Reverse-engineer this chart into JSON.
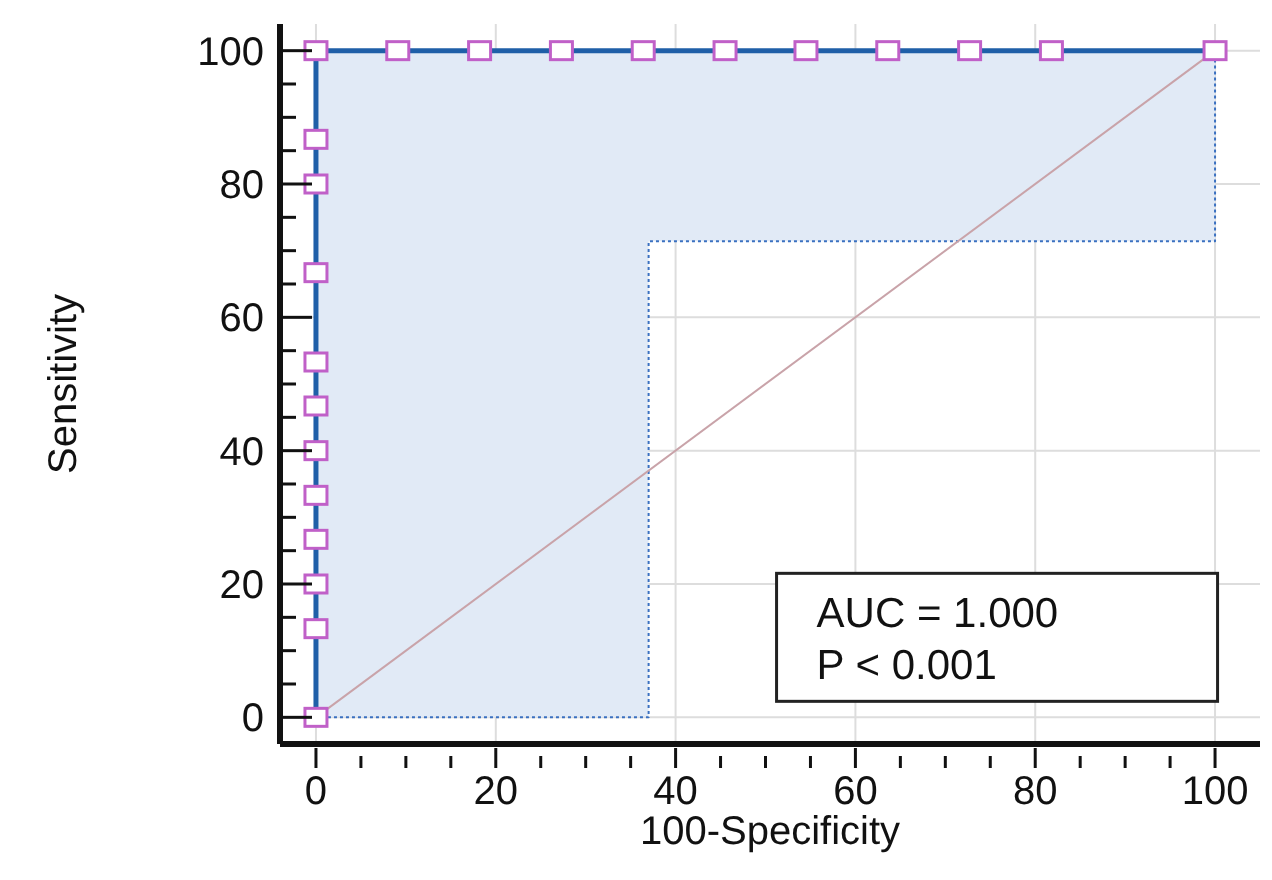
{
  "chart_data": {
    "type": "line",
    "xlabel": "100-Specificity",
    "ylabel": "Sensitivity",
    "xlim": [
      -4,
      105
    ],
    "ylim": [
      -4,
      104
    ],
    "xticks": [
      0,
      {
        "value": 5,
        "label": null
      },
      {
        "value": 10,
        "label": null
      },
      {
        "value": 15,
        "label": null
      },
      20,
      {
        "value": 25,
        "label": null
      },
      {
        "value": 30,
        "label": null
      },
      {
        "value": 35,
        "label": null
      },
      40,
      {
        "value": 45,
        "label": null
      },
      {
        "value": 50,
        "label": null
      },
      {
        "value": 55,
        "label": null
      },
      60,
      {
        "value": 65,
        "label": null
      },
      {
        "value": 70,
        "label": null
      },
      {
        "value": 75,
        "label": null
      },
      80,
      {
        "value": 85,
        "label": null
      },
      {
        "value": 90,
        "label": null
      },
      {
        "value": 95,
        "label": null
      },
      100
    ],
    "yticks": [
      0,
      {
        "value": 5,
        "label": null
      },
      {
        "value": 10,
        "label": null
      },
      {
        "value": 15,
        "label": null
      },
      20,
      {
        "value": 25,
        "label": null
      },
      {
        "value": 30,
        "label": null
      },
      {
        "value": 35,
        "label": null
      },
      40,
      {
        "value": 45,
        "label": null
      },
      {
        "value": 50,
        "label": null
      },
      {
        "value": 55,
        "label": null
      },
      60,
      {
        "value": 65,
        "label": null
      },
      {
        "value": 70,
        "label": null
      },
      {
        "value": 75,
        "label": null
      },
      80,
      {
        "value": 85,
        "label": null
      },
      {
        "value": 90,
        "label": null
      },
      {
        "value": 95,
        "label": null
      },
      100
    ],
    "grid": true,
    "series": [
      {
        "color": "#3a70c0",
        "line_style": "dotted",
        "marker": "none",
        "x": [
          0,
          37,
          37,
          100,
          100
        ],
        "values": [
          0,
          0,
          71.4,
          71.4,
          100
        ],
        "lower": [
          0,
          0,
          71.4,
          71.4,
          100
        ],
        "upper": [
          100,
          100,
          100,
          100,
          100
        ]
      },
      {
        "color": "#c9a3a9",
        "line_style": "solid",
        "marker": "none",
        "x": [
          0,
          100
        ],
        "values": [
          0,
          100
        ]
      },
      {
        "color": "#1f5fa8",
        "line_style": "solid",
        "marker": "square",
        "x": [
          0,
          0,
          0,
          0,
          0,
          0,
          0,
          0,
          0,
          0,
          0,
          0,
          9.1,
          18.2,
          27.3,
          36.4,
          45.5,
          54.5,
          63.6,
          72.7,
          81.8,
          100
        ],
        "values": [
          0,
          13.3,
          20,
          26.7,
          33.3,
          40,
          46.7,
          53.3,
          66.7,
          80,
          86.7,
          100,
          100,
          100,
          100,
          100,
          100,
          100,
          100,
          100,
          100,
          100
        ]
      }
    ],
    "annotations": [
      "AUC = 1.000",
      "P < 0.001"
    ]
  }
}
